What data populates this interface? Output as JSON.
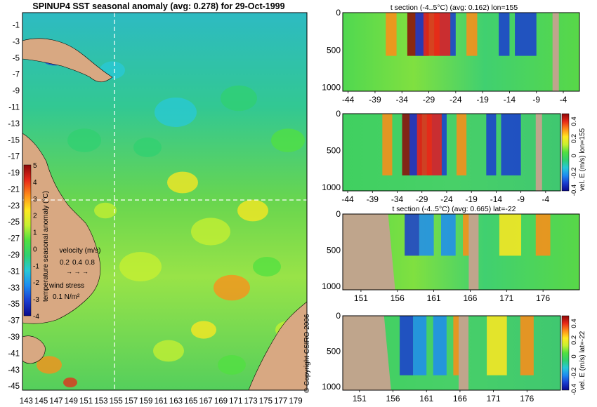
{
  "title": "SPINUP4 SST seasonal anomaly (avg: 0.278) for 29-Oct-1999",
  "copyright": "© Copyright CSIRO 2006",
  "colors": {
    "land": "#d8a882",
    "section_land": "#bfa58c",
    "ramp": [
      "#0a0a8c",
      "#1a3cd0",
      "#1e8cf0",
      "#28c8d8",
      "#30d070",
      "#50e040",
      "#c8f030",
      "#ffe820",
      "#ff8c18",
      "#e82818",
      "#8c0808"
    ]
  },
  "map": {
    "chart_data": {
      "type": "heatmap",
      "title": "SPINUP4 SST seasonal anomaly (avg: 0.278) for 29-Oct-1999",
      "x_ticks": [
        "143",
        "145",
        "147",
        "149",
        "151",
        "153",
        "155",
        "157",
        "159",
        "161",
        "163",
        "165",
        "167",
        "169",
        "171",
        "173",
        "175",
        "177",
        "179"
      ],
      "y_ticks": [
        "-1",
        "-3",
        "-5",
        "-7",
        "-9",
        "-11",
        "-13",
        "-15",
        "-17",
        "-19",
        "-21",
        "-23",
        "-25",
        "-27",
        "-29",
        "-31",
        "-33",
        "-35",
        "-37",
        "-39",
        "-41",
        "-43",
        "-45"
      ],
      "xlim": [
        142.5,
        180.5
      ],
      "ylim": [
        -45.5,
        0.5
      ],
      "crosshair": {
        "lon": 155,
        "lat": -22
      },
      "colorbar": {
        "label": "temperature seasonal anomaly (°C)",
        "ticks": [
          "5",
          "4",
          "3",
          "2",
          "1",
          "0",
          "-1",
          "-2",
          "-3",
          "-4"
        ],
        "range": [
          -4,
          5
        ]
      },
      "velocity_legend": {
        "label": "velocity (m/s)",
        "values": [
          "0.2",
          "0.4",
          "0.8"
        ]
      },
      "wind_legend": {
        "label": "wind stress",
        "value": "0.1 N/m²"
      }
    }
  },
  "sections": [
    {
      "title": "t section (-4..5°C) (avg: 0.162) lon=155",
      "chart_data": {
        "type": "heatmap",
        "x_ticks": [
          "-44",
          "-39",
          "-34",
          "-29",
          "-24",
          "-19",
          "-14",
          "-9",
          "-4"
        ],
        "y_ticks": [
          "0",
          "500",
          "1000"
        ],
        "xlim": [
          -45,
          -1
        ],
        "ylim": [
          1050,
          0
        ]
      }
    },
    {
      "title": "",
      "colorbar_label": "vel. E (m/s) lon=155",
      "colorbar_ticks": [
        "0.4",
        "0.2",
        "0",
        "-0.2",
        "-0.4"
      ],
      "chart_data": {
        "type": "heatmap",
        "x_ticks": [
          "-44",
          "-39",
          "-34",
          "-29",
          "-24",
          "-19",
          "-14",
          "-9",
          "-4"
        ],
        "y_ticks": [
          "0",
          "500",
          "1000"
        ],
        "xlim": [
          -45,
          -1
        ],
        "ylim": [
          1050,
          0
        ]
      }
    },
    {
      "title": "t section (-4..5°C) (avg: 0.665) lat=-22",
      "chart_data": {
        "type": "heatmap",
        "x_ticks": [
          "151",
          "156",
          "161",
          "166",
          "171",
          "176"
        ],
        "y_ticks": [
          "0",
          "500",
          "1000"
        ],
        "xlim": [
          148.5,
          181
        ],
        "ylim": [
          1050,
          0
        ]
      }
    },
    {
      "title": "",
      "colorbar_label": "vel. E (m/s) lat=-22",
      "colorbar_ticks": [
        "0.4",
        "0.2",
        "0",
        "-0.2",
        "-0.4"
      ],
      "chart_data": {
        "type": "heatmap",
        "x_ticks": [
          "151",
          "156",
          "161",
          "166",
          "171",
          "176"
        ],
        "y_ticks": [
          "0",
          "500",
          "1000"
        ],
        "xlim": [
          148.5,
          181
        ],
        "ylim": [
          1050,
          0
        ]
      }
    }
  ]
}
